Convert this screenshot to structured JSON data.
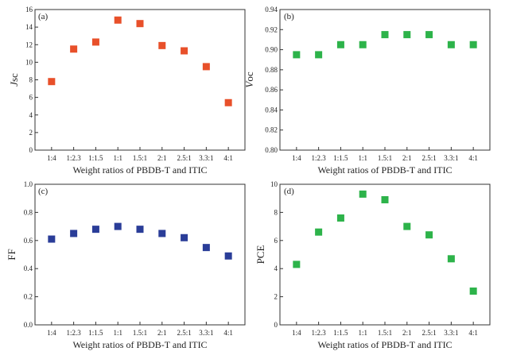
{
  "figure": {
    "categories": [
      "1:4",
      "1:2.3",
      "1:1.5",
      "1:1",
      "1.5:1",
      "2:1",
      "2.5:1",
      "3.3:1",
      "4:1"
    ],
    "xlabel": "Weight ratios of PBDB-T and ITIC"
  },
  "chart_data": [
    {
      "type": "scatter",
      "panel_label": "(a)",
      "ylabel_main": "J",
      "ylabel_sub": "sc",
      "color": "#e8502a",
      "categories": [
        "1:4",
        "1:2.3",
        "1:1.5",
        "1:1",
        "1.5:1",
        "2:1",
        "2.5:1",
        "3.3:1",
        "4:1"
      ],
      "values": [
        7.8,
        11.5,
        12.3,
        14.8,
        14.4,
        11.9,
        11.3,
        9.5,
        5.4
      ],
      "ylim": [
        0,
        16
      ],
      "yticks": [
        "0",
        "2",
        "4",
        "6",
        "8",
        "10",
        "12",
        "14",
        "16"
      ],
      "xlabel": "Weight ratios of PBDB-T and ITIC"
    },
    {
      "type": "scatter",
      "panel_label": "(b)",
      "ylabel_main": "V",
      "ylabel_sub": "oc",
      "color": "#2db34a",
      "categories": [
        "1:4",
        "1:2.3",
        "1:1.5",
        "1:1",
        "1.5:1",
        "2:1",
        "2.5:1",
        "3.3:1",
        "4:1"
      ],
      "values": [
        0.895,
        0.895,
        0.905,
        0.905,
        0.915,
        0.915,
        0.915,
        0.905,
        0.905
      ],
      "ylim": [
        0.8,
        0.94
      ],
      "yticks": [
        "0.80",
        "0.82",
        "0.84",
        "0.86",
        "0.88",
        "0.90",
        "0.92",
        "0.94"
      ],
      "xlabel": "Weight ratios of PBDB-T and ITIC"
    },
    {
      "type": "scatter",
      "panel_label": "(c)",
      "ylabel_main": "FF",
      "ylabel_sub": "",
      "color": "#2a3d98",
      "categories": [
        "1:4",
        "1:2.3",
        "1:1.5",
        "1:1",
        "1.5:1",
        "2:1",
        "2.5:1",
        "3.3:1",
        "4:1"
      ],
      "values": [
        0.61,
        0.65,
        0.68,
        0.7,
        0.68,
        0.65,
        0.62,
        0.55,
        0.49
      ],
      "ylim": [
        0,
        1.0
      ],
      "yticks": [
        "0.0",
        "0.2",
        "0.4",
        "0.6",
        "0.8",
        "1.0"
      ],
      "xlabel": "Weight ratios of PBDB-T and ITIC"
    },
    {
      "type": "scatter",
      "panel_label": "(d)",
      "ylabel_main": "PCE",
      "ylabel_sub": "",
      "color": "#2db34a",
      "categories": [
        "1:4",
        "1:2.3",
        "1:1.5",
        "1:1",
        "1.5:1",
        "2:1",
        "2.5:1",
        "3.3:1",
        "4:1"
      ],
      "values": [
        4.3,
        6.6,
        7.6,
        9.3,
        8.9,
        7.0,
        6.4,
        4.7,
        2.4
      ],
      "ylim": [
        0,
        10
      ],
      "yticks": [
        "0",
        "2",
        "4",
        "6",
        "8",
        "10"
      ],
      "xlabel": "Weight ratios of PBDB-T and ITIC"
    }
  ]
}
